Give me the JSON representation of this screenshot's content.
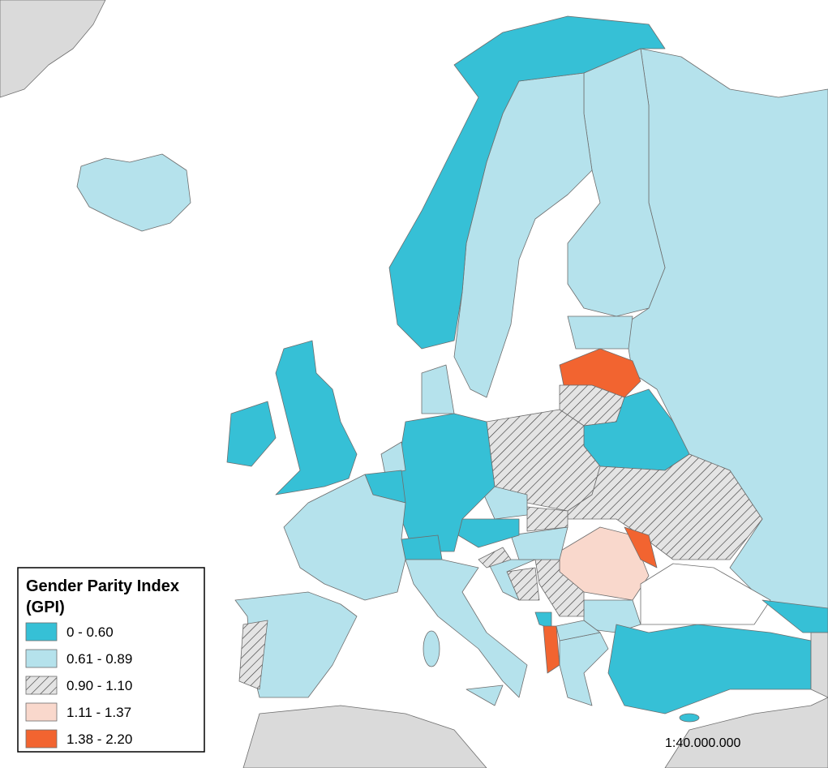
{
  "legend": {
    "title_lines": [
      "Gender Parity Index",
      "(GPI)"
    ],
    "items": [
      {
        "label": "0 - 0.60",
        "color": "#36c0d6"
      },
      {
        "label": "0.61 - 0.89",
        "color": "#b5e2ec"
      },
      {
        "label": "0.90 - 1.10",
        "color": "#e4e4e4",
        "hatch": true
      },
      {
        "label": "1.11 - 1.37",
        "color": "#f9d8cc"
      },
      {
        "label": "1.38 - 2.20",
        "color": "#f26430"
      }
    ]
  },
  "scale": "1:40.000.000"
}
